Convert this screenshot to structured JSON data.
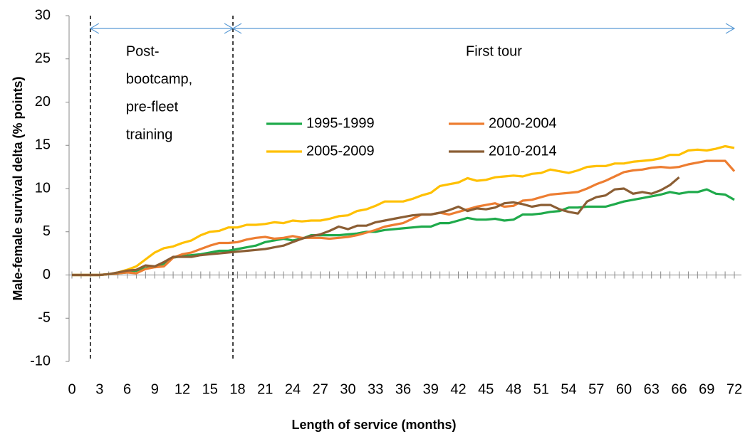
{
  "chart_data": {
    "type": "line",
    "xlabel": "Length of service (months)",
    "ylabel": "Male-female survival delta (% points)",
    "x": [
      0,
      1,
      2,
      3,
      4,
      5,
      6,
      7,
      8,
      9,
      10,
      11,
      12,
      13,
      14,
      15,
      16,
      17,
      18,
      19,
      20,
      21,
      22,
      23,
      24,
      25,
      26,
      27,
      28,
      29,
      30,
      31,
      32,
      33,
      34,
      35,
      36,
      37,
      38,
      39,
      40,
      41,
      42,
      43,
      44,
      45,
      46,
      47,
      48,
      49,
      50,
      51,
      52,
      53,
      54,
      55,
      56,
      57,
      58,
      59,
      60,
      61,
      62,
      63,
      64,
      65,
      66,
      67,
      68,
      69,
      70,
      71,
      72
    ],
    "series": [
      {
        "name": "1995-1999",
        "color": "#1faa4b",
        "values": [
          0,
          0,
          0,
          0,
          0.1,
          0.2,
          0.3,
          0.5,
          0.8,
          1.0,
          1.3,
          2.0,
          2.2,
          2.3,
          2.4,
          2.6,
          2.8,
          2.8,
          3.0,
          3.2,
          3.4,
          3.8,
          4.0,
          4.2,
          4.0,
          4.2,
          4.6,
          4.6,
          4.6,
          4.6,
          4.7,
          4.8,
          5.0,
          5.0,
          5.2,
          5.3,
          5.4,
          5.5,
          5.6,
          5.6,
          6.0,
          6.0,
          6.3,
          6.6,
          6.4,
          6.4,
          6.5,
          6.3,
          6.4,
          7.0,
          7.0,
          7.1,
          7.3,
          7.4,
          7.8,
          7.8,
          7.9,
          7.9,
          7.9,
          8.2,
          8.5,
          8.7,
          8.9,
          9.1,
          9.3,
          9.6,
          9.4,
          9.6,
          9.6,
          9.9,
          9.4,
          9.3,
          8.7
        ]
      },
      {
        "name": "2000-2004",
        "color": "#ed7d31",
        "values": [
          0,
          0,
          0,
          0,
          0.1,
          0.2,
          0.3,
          0.2,
          0.7,
          0.9,
          1.0,
          2.0,
          2.4,
          2.6,
          3.0,
          3.4,
          3.7,
          3.7,
          3.8,
          4.1,
          4.3,
          4.4,
          4.2,
          4.3,
          4.5,
          4.3,
          4.3,
          4.3,
          4.2,
          4.3,
          4.4,
          4.6,
          4.9,
          5.2,
          5.6,
          5.8,
          6.0,
          6.5,
          7.0,
          7.0,
          7.2,
          7.0,
          7.3,
          7.6,
          7.9,
          8.1,
          8.3,
          7.9,
          8.0,
          8.6,
          8.7,
          9.0,
          9.3,
          9.4,
          9.5,
          9.6,
          10.0,
          10.5,
          10.9,
          11.4,
          11.9,
          12.1,
          12.2,
          12.4,
          12.5,
          12.4,
          12.5,
          12.8,
          13.0,
          13.2,
          13.2,
          13.2,
          12.0
        ]
      },
      {
        "name": "2005-2009",
        "color": "#ffc000",
        "values": [
          0,
          0,
          0,
          0,
          0.1,
          0.3,
          0.6,
          1.0,
          1.8,
          2.6,
          3.1,
          3.3,
          3.7,
          4.0,
          4.6,
          5.0,
          5.1,
          5.5,
          5.5,
          5.8,
          5.8,
          5.9,
          6.1,
          6.0,
          6.3,
          6.2,
          6.3,
          6.3,
          6.5,
          6.8,
          6.9,
          7.4,
          7.6,
          8.0,
          8.5,
          8.5,
          8.5,
          8.8,
          9.2,
          9.5,
          10.3,
          10.5,
          10.7,
          11.2,
          10.9,
          11.0,
          11.3,
          11.4,
          11.5,
          11.4,
          11.7,
          11.8,
          12.2,
          12.0,
          11.8,
          12.1,
          12.5,
          12.6,
          12.6,
          12.9,
          12.9,
          13.1,
          13.2,
          13.3,
          13.5,
          13.9,
          13.9,
          14.4,
          14.5,
          14.4,
          14.6,
          14.9,
          14.7
        ]
      },
      {
        "name": "2010-2014",
        "color": "#8b5e34",
        "values": [
          0,
          0,
          0,
          0,
          0.1,
          0.3,
          0.5,
          0.6,
          1.1,
          1.0,
          1.5,
          2.1,
          2.1,
          2.1,
          2.3,
          2.4,
          2.5,
          2.6,
          2.7,
          2.8,
          2.9,
          3.0,
          3.2,
          3.4,
          3.8,
          4.2,
          4.5,
          4.7,
          5.1,
          5.6,
          5.3,
          5.7,
          5.7,
          6.1,
          6.3,
          6.5,
          6.7,
          6.9,
          7.0,
          7.0,
          7.2,
          7.5,
          7.9,
          7.4,
          7.7,
          7.6,
          7.8,
          8.3,
          8.4,
          8.2,
          7.9,
          8.1,
          8.1,
          7.6,
          7.3,
          7.1,
          8.5,
          9.0,
          9.2,
          9.9,
          10.0,
          9.4,
          9.6,
          9.4,
          9.8,
          10.4,
          11.3,
          null,
          null,
          null,
          null,
          null,
          null
        ]
      }
    ],
    "xlim": [
      0,
      72
    ],
    "xticks": [
      0,
      3,
      6,
      9,
      12,
      15,
      18,
      21,
      24,
      27,
      30,
      33,
      36,
      39,
      42,
      45,
      48,
      51,
      54,
      57,
      60,
      63,
      66,
      69,
      72
    ],
    "ylim": [
      -10,
      30
    ],
    "yticks": [
      -10,
      -5,
      0,
      5,
      10,
      15,
      20,
      25,
      30
    ],
    "phases": [
      {
        "start": 2,
        "end": 17.5,
        "label": [
          "Post-",
          "bootcamp,",
          "pre-fleet",
          "training"
        ]
      },
      {
        "start": 17.5,
        "end": 72,
        "label": [
          "First tour"
        ]
      }
    ]
  }
}
